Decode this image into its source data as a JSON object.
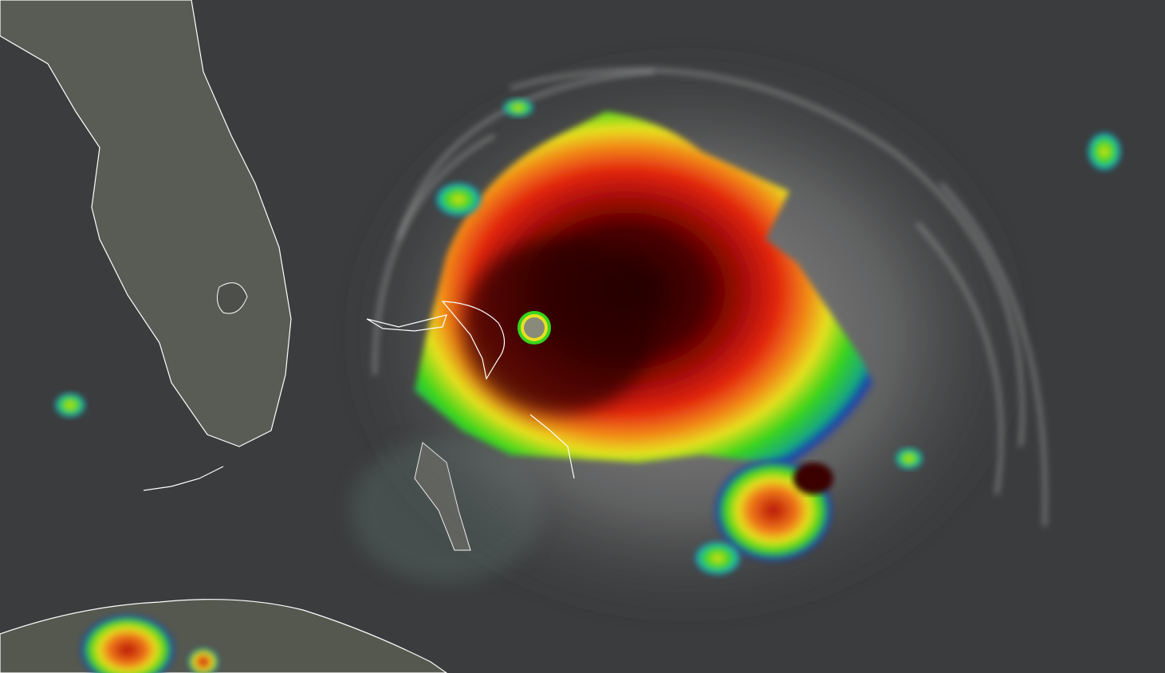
{
  "image": {
    "subject": "hurricane-satellite-ir",
    "colors": {
      "ocean": "#3b3c3d",
      "land": "#5a5d55",
      "coastline": "#ffffff",
      "cloud_gray": "#9a9a9a",
      "ir_blue": "#1a3fb0",
      "ir_green": "#33d11a",
      "ir_yellow": "#e8e020",
      "ir_orange": "#f07a1a",
      "ir_red": "#d81c0e",
      "ir_darkred": "#3a0000",
      "eye": "#8a8a7a"
    }
  }
}
